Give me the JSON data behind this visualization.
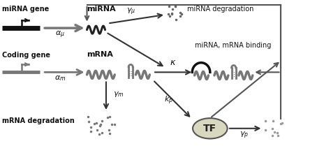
{
  "bg_color": "#ffffff",
  "fig_width": 4.74,
  "fig_height": 2.29,
  "dpi": 100,
  "labels": {
    "mirna_gene": "miRNA gene",
    "coding_gene": "Coding gene",
    "mirna": "miRNA",
    "mrna": "mRNA",
    "mirna_deg": "miRNA degradation",
    "mirna_mrna_binding": "miRNA, mRNA binding",
    "mrna_deg": "mRNA degradation",
    "TF": "TF"
  },
  "colors": {
    "black": "#111111",
    "dark": "#333333",
    "gray": "#777777",
    "light_gray": "#999999",
    "tf_fill": "#d8d8c0",
    "tf_edge": "#555555",
    "text": "#111111",
    "feedback_line": "#555555"
  },
  "fontsize_label": 7.0,
  "fontsize_greek": 8.0,
  "fontsize_TF": 9.0
}
